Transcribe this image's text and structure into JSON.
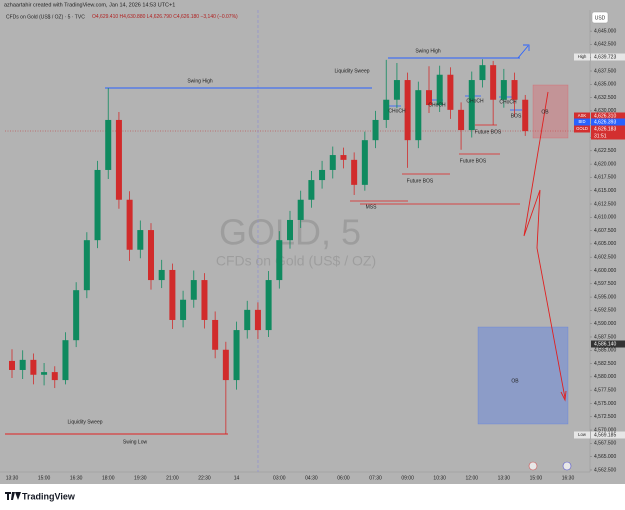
{
  "header": {
    "attribution": "azhaartahir created with TradingView.com, Jan 14, 2026 14:53 UTC+1",
    "symbol": "CFDs on Gold (US$ / OZ) · 5 · TVC",
    "ohlc": [
      "O4,629.410",
      "H4,630.880",
      "L4,626.790",
      "C4,626.180",
      "−3,140 (−0.07%)"
    ]
  },
  "chart_data": {
    "type": "candlestick",
    "title": "GOLD, 5",
    "subtitle": "CFDs on Gold (US$ / OZ)",
    "currency": "USD",
    "categories": [
      "13:30",
      null,
      null,
      "15:00",
      null,
      null,
      "16:30",
      null,
      null,
      "18:00",
      null,
      null,
      "19:30",
      null,
      null,
      "21:00",
      null,
      null,
      "22:30",
      null,
      null,
      "14",
      null,
      null,
      null,
      "03:00",
      null,
      null,
      "04:30",
      null,
      null,
      "06:00",
      null,
      null,
      "07:30",
      null,
      null,
      "09:00",
      null,
      null,
      "10:30",
      null,
      null,
      "12:00",
      null,
      null,
      "13:30",
      null,
      null,
      "15:00",
      null,
      null,
      "16:30"
    ],
    "up_color": "#0f8a5f",
    "down_color": "#d12b2b",
    "open": [
      4583.0,
      4581.3,
      4583.2,
      4580.4,
      4580.9,
      4579.4,
      4586.9,
      4596.3,
      4605.7,
      4618.9,
      4628.3,
      4613.3,
      4603.9,
      4607.6,
      4598.2,
      4600.1,
      4590.7,
      4594.5,
      4598.2,
      4590.7,
      4585.1,
      4579.4,
      4588.8,
      4592.6,
      4588.8,
      4598.2,
      4605.7,
      4609.5,
      4613.3,
      4617.0,
      4618.9,
      4621.7,
      4620.8,
      4616.1,
      4624.5,
      4628.3,
      4632.1,
      4635.8,
      4624.5,
      4633.9,
      4631.1,
      4636.8,
      4630.2,
      4626.4,
      4635.8,
      4638.6,
      4632.1,
      4635.8,
      4632.1,
      null,
      null,
      null,
      null
    ],
    "high": [
      4585.2,
      4585.0,
      4584.4,
      4582.6,
      4582.0,
      4588.4,
      4597.8,
      4607.2,
      4620.6,
      4634.3,
      4629.8,
      4614.9,
      4609.4,
      4608.9,
      4602.0,
      4601.3,
      4596.2,
      4600.0,
      4599.5,
      4592.3,
      4586.6,
      4590.4,
      4594.3,
      4594.0,
      4599.9,
      4607.4,
      4611.2,
      4615.0,
      4618.7,
      4620.6,
      4623.3,
      4623.1,
      4622.2,
      4626.1,
      4630.0,
      4639.6,
      4639.0,
      4637.2,
      4635.5,
      4638.4,
      4638.5,
      4638.2,
      4631.6,
      4637.4,
      4639.7,
      4639.4,
      4637.9,
      4637.2,
      4633.0,
      null,
      null,
      null,
      null
    ],
    "low": [
      4579.8,
      4579.6,
      4578.6,
      4578.4,
      4577.9,
      4578.6,
      4585.6,
      4594.8,
      4604.2,
      4617.2,
      4611.6,
      4601.8,
      4602.3,
      4596.4,
      4596.7,
      4589.0,
      4589.3,
      4593.0,
      4589.1,
      4583.5,
      4569.2,
      4577.6,
      4587.2,
      4587.1,
      4587.5,
      4596.6,
      4604.1,
      4608.0,
      4611.8,
      4615.4,
      4617.3,
      4619.2,
      4614.2,
      4615.0,
      4623.0,
      4626.8,
      4630.5,
      4619.3,
      4623.0,
      4629.6,
      4629.8,
      4628.5,
      4622.7,
      4625.0,
      4634.4,
      4627.3,
      4630.6,
      4628.9,
      4625.3,
      null,
      null,
      null,
      null
    ],
    "close": [
      4581.3,
      4583.2,
      4580.4,
      4580.9,
      4579.4,
      4586.9,
      4596.3,
      4605.7,
      4618.9,
      4628.3,
      4613.3,
      4603.9,
      4607.6,
      4598.2,
      4600.1,
      4590.7,
      4594.5,
      4598.2,
      4590.7,
      4585.1,
      4579.4,
      4588.8,
      4592.6,
      4588.8,
      4598.2,
      4605.7,
      4609.5,
      4613.3,
      4617.0,
      4618.9,
      4621.7,
      4620.8,
      4616.1,
      4624.5,
      4628.3,
      4632.1,
      4635.8,
      4624.5,
      4633.9,
      4631.1,
      4636.8,
      4630.2,
      4626.4,
      4635.8,
      4638.6,
      4632.1,
      4635.8,
      4632.1,
      4626.2,
      null,
      null,
      null,
      null
    ],
    "ylim": [
      4562.12,
      4648.97
    ],
    "yticks": [
      {
        "value": 4562.5,
        "label": "4,562.500"
      },
      {
        "value": 4565,
        "label": "4,565.000"
      },
      {
        "value": 4567.5,
        "label": "4,567.500"
      },
      {
        "value": 4570,
        "label": "4,570.000"
      },
      {
        "value": 4572.5,
        "label": "4,572.500"
      },
      {
        "value": 4575,
        "label": "4,575.000"
      },
      {
        "value": 4577.5,
        "label": "4,577.500"
      },
      {
        "value": 4580,
        "label": "4,580.000"
      },
      {
        "value": 4582.5,
        "label": "4,582.500"
      },
      {
        "value": 4585,
        "label": "4,585.000"
      },
      {
        "value": 4587.5,
        "label": "4,587.500"
      },
      {
        "value": 4590,
        "label": "4,590.000"
      },
      {
        "value": 4592.5,
        "label": "4,592.500"
      },
      {
        "value": 4595,
        "label": "4,595.000"
      },
      {
        "value": 4597.5,
        "label": "4,597.500"
      },
      {
        "value": 4600,
        "label": "4,600.000"
      },
      {
        "value": 4602.5,
        "label": "4,602.500"
      },
      {
        "value": 4605,
        "label": "4,605.000"
      },
      {
        "value": 4607.5,
        "label": "4,607.500"
      },
      {
        "value": 4610,
        "label": "4,610.000"
      },
      {
        "value": 4612.5,
        "label": "4,612.500"
      },
      {
        "value": 4615,
        "label": "4,615.000"
      },
      {
        "value": 4617.5,
        "label": "4,617.500"
      },
      {
        "value": 4620,
        "label": "4,620.000"
      },
      {
        "value": 4622.5,
        "label": "4,622.500"
      },
      {
        "value": 4625,
        "label": "4,625.000"
      },
      {
        "value": 4627.5,
        "label": "4,627.500"
      },
      {
        "value": 4630,
        "label": "4,630.000"
      },
      {
        "value": 4632.5,
        "label": "4,632.500"
      },
      {
        "value": 4635,
        "label": "4,635.000"
      },
      {
        "value": 4637.5,
        "label": "4,637.500"
      },
      {
        "value": 4640,
        "label": "4,640.000"
      },
      {
        "value": 4642.5,
        "label": "4,642.500"
      },
      {
        "value": 4645,
        "label": "4,645.000"
      }
    ],
    "grid": false,
    "price_badges": [
      {
        "tag": "High",
        "text": "4,639.723"
      },
      {
        "tag": "ASK",
        "text": "4,626.310"
      },
      {
        "tag": "BID",
        "text": "4,626.393"
      },
      {
        "tag": "GOLD",
        "text": "4,626.183"
      },
      {
        "tag": "",
        "text": "31:51"
      },
      {
        "tag": "",
        "text": "4,586.140"
      },
      {
        "tag": "Low",
        "text": "4,569.185"
      }
    ],
    "annotations": [
      "Swing High",
      "Liquidity Sweep",
      "Swing High",
      "CHoCH",
      "CHoCH",
      "CHoCH",
      "CHoCH",
      "BOS",
      "OB",
      "Future BOS",
      "Future BOS",
      "Future BOS",
      "MSS",
      "OB",
      "Liquidity Sweep",
      "Swing Low"
    ]
  },
  "footer": {
    "brand": "TradingView"
  }
}
